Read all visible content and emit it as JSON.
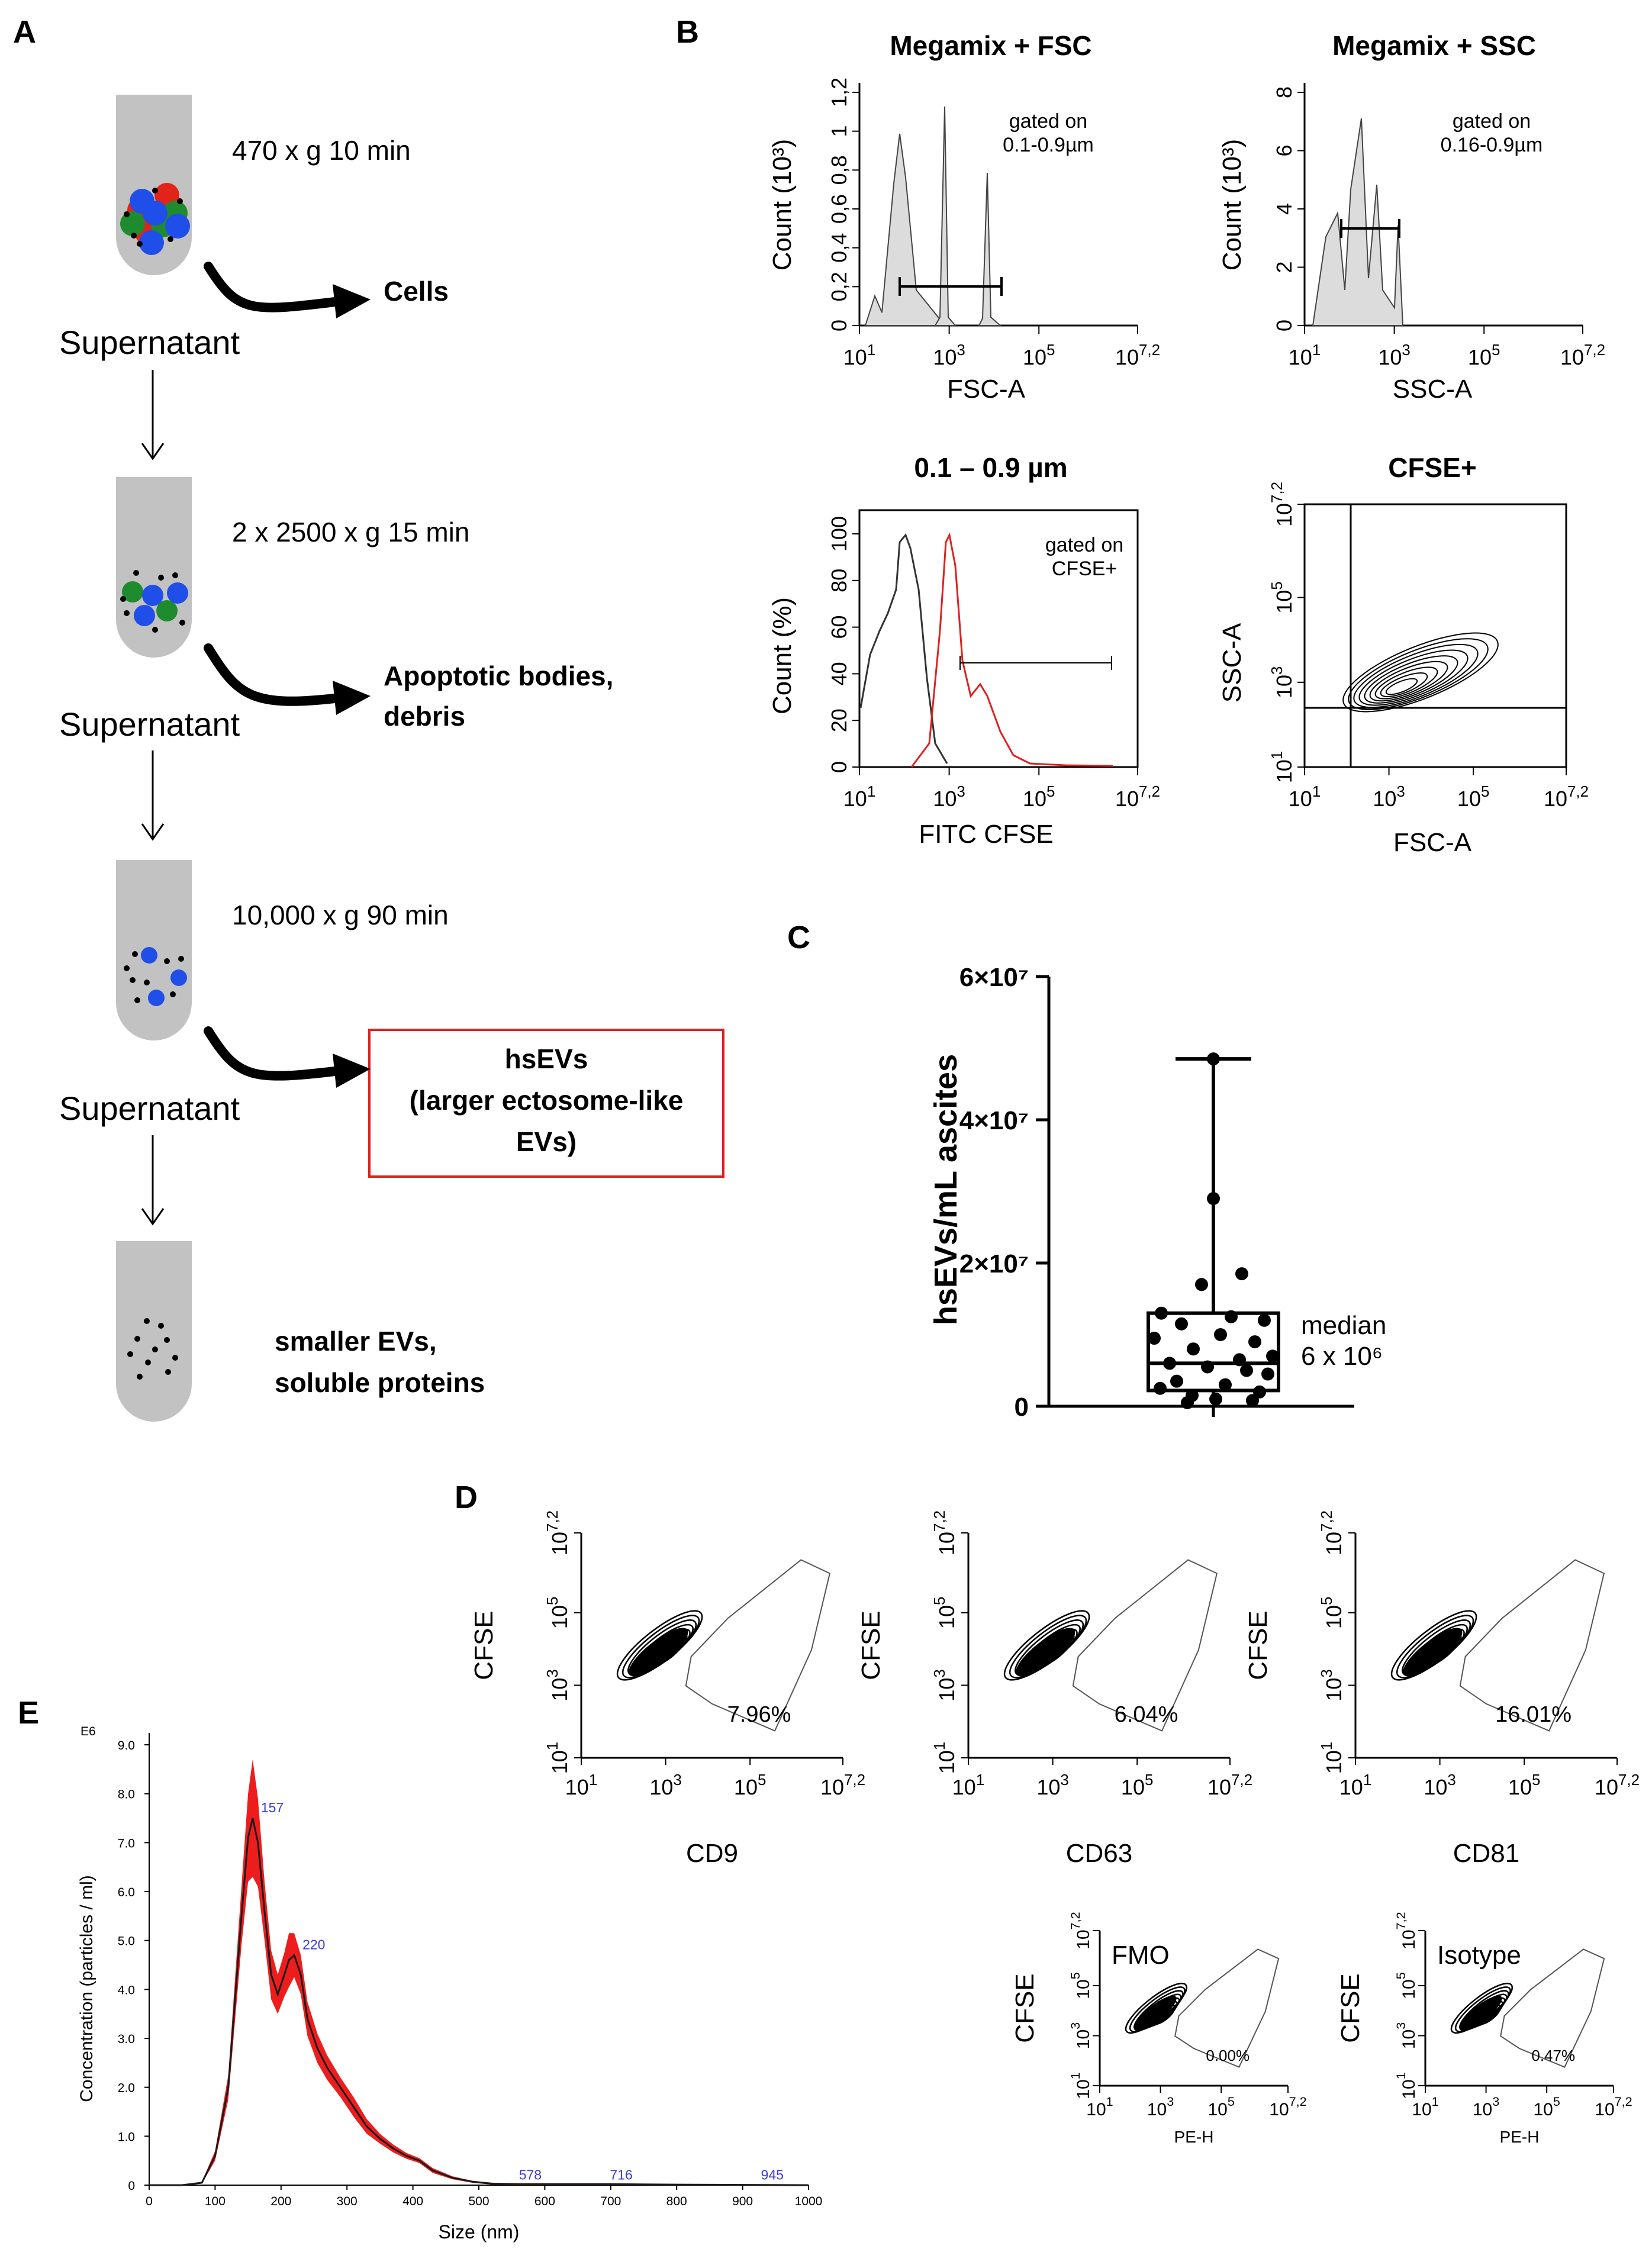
{
  "panels": {
    "a": "A",
    "b": "B",
    "c": "C",
    "d": "D",
    "e": "E"
  },
  "panel_a": {
    "steps": [
      "470 x g 10 min",
      "2 x 2500 x g 15 min",
      "10,000 x g 90 min"
    ],
    "outputs": [
      "Cells",
      "Apoptotic bodies, debris",
      "smaller EVs, soluble proteins"
    ],
    "output_lines": [
      [
        "Cells"
      ],
      [
        "Apoptotic bodies,",
        "debris"
      ],
      [
        "smaller EVs,",
        "soluble proteins"
      ]
    ],
    "supernatant": "Supernatant",
    "boxed_output": "hsEVs (larger ectosome-like EVs)",
    "boxed_lines": [
      "hsEVs",
      "(larger ectosome-like",
      "EVs)"
    ],
    "colors": {
      "tube": "#c2c2c2",
      "red": "#e2231a",
      "green": "#1e8c2e",
      "blue": "#1f4fe8",
      "box": "#e02020"
    }
  },
  "panel_b": {
    "plots": [
      {
        "title": "Megamix + FSC",
        "xlabel": "FSC-A",
        "ylabel": "Count (10³)",
        "gate_note": [
          "gated on",
          "0.1-0.9µm"
        ],
        "y_ticks": [
          "0",
          "0,2",
          "0,4",
          "0,6",
          "0,8",
          "1",
          "1,2"
        ]
      },
      {
        "title": "Megamix + SSC",
        "xlabel": "SSC-A",
        "ylabel": "Count (10³)",
        "gate_note": [
          "gated on",
          "0.16-0.9µm"
        ],
        "y_ticks": [
          "0",
          "2",
          "4",
          "6",
          "8"
        ]
      },
      {
        "title": "0.1 – 0.9 µm",
        "xlabel": "FITC CFSE",
        "ylabel": "Count (%)",
        "gate_note": [
          "gated on",
          "CFSE+"
        ],
        "y_ticks": [
          "0",
          "20",
          "40",
          "60",
          "80",
          "100"
        ]
      },
      {
        "title": "CFSE+",
        "xlabel": "FSC-A",
        "ylabel": "SSC-A"
      }
    ],
    "log_ticks": [
      "10",
      "10",
      "10",
      "10"
    ],
    "log_exps": [
      "1",
      "3",
      "5",
      "7,2"
    ],
    "colors": {
      "cfse": "#e02020",
      "fill": "#dcdcdc"
    }
  },
  "chart_data": [
    {
      "type": "scatter",
      "title": "",
      "ylabel": "hsEVs/mL ascites",
      "y_ticks": [
        "0",
        "2×10⁷",
        "4×10⁷",
        "6×10⁷"
      ],
      "ylim": [
        0,
        60000000
      ],
      "box": {
        "min": 500000,
        "q1": 2200000,
        "median": 6000000,
        "q3": 13000000,
        "max": 48500000
      },
      "points": [
        48500000,
        29000000,
        18500000,
        17000000,
        13000000,
        12500000,
        12000000,
        11500000,
        10000000,
        9500000,
        9000000,
        8000000,
        7000000,
        6500000,
        6000000,
        5500000,
        5000000,
        4500000,
        3500000,
        3000000,
        2500000,
        2000000,
        1500000,
        1000000,
        800000,
        500000
      ],
      "annotation": "median 6 x 10⁶",
      "annotation_lines": [
        "median",
        "6 x 10⁶"
      ]
    },
    {
      "type": "line",
      "title": "",
      "xlabel": "Size (nm)",
      "ylabel": "Concentration (particles / ml)",
      "y_multiplier": "E6",
      "x_ticks": [
        0,
        100,
        200,
        300,
        400,
        500,
        600,
        700,
        800,
        900,
        1000
      ],
      "y_ticks": [
        "0",
        "1.0",
        "2.0",
        "3.0",
        "4.0",
        "5.0",
        "6.0",
        "7.0",
        "8.0",
        "9.0"
      ],
      "xlim": [
        0,
        1000
      ],
      "ylim": [
        0,
        9
      ],
      "x": [
        50,
        80,
        100,
        120,
        140,
        150,
        157,
        165,
        175,
        185,
        195,
        205,
        212,
        220,
        230,
        240,
        255,
        270,
        290,
        310,
        330,
        350,
        370,
        390,
        410,
        430,
        460,
        490,
        520,
        560,
        600,
        700,
        800,
        1000
      ],
      "y": [
        0,
        0.05,
        0.6,
        2.0,
        5.5,
        7.1,
        7.5,
        7.0,
        5.6,
        4.3,
        3.9,
        4.3,
        4.6,
        4.7,
        4.3,
        3.4,
        2.8,
        2.4,
        2.0,
        1.6,
        1.2,
        0.95,
        0.75,
        0.6,
        0.5,
        0.3,
        0.15,
        0.07,
        0.03,
        0.02,
        0.02,
        0.02,
        0.01,
        0.0
      ],
      "spread": [
        0,
        0.02,
        0.1,
        0.25,
        0.6,
        0.9,
        1.2,
        0.9,
        0.6,
        0.5,
        0.4,
        0.45,
        0.55,
        0.45,
        0.4,
        0.35,
        0.3,
        0.25,
        0.2,
        0.2,
        0.15,
        0.1,
        0.08,
        0.06,
        0.05,
        0.05,
        0.03,
        0.02,
        0.02,
        0.02,
        0.02,
        0.02,
        0.01,
        0.0
      ],
      "peak_labels": [
        {
          "x": 157,
          "y": 7.5,
          "label": "157"
        },
        {
          "x": 220,
          "y": 4.7,
          "label": "220"
        },
        {
          "x": 578,
          "y": 0.02,
          "label": "578"
        },
        {
          "x": 716,
          "y": 0.02,
          "label": "716"
        },
        {
          "x": 945,
          "y": 0.02,
          "label": "945"
        }
      ],
      "colors": {
        "band": "#ee1d1d",
        "mean": "#1a1a1a",
        "peak": "#3a3ae0"
      }
    }
  ],
  "panel_d": {
    "plots": [
      {
        "xlabel": "CD9",
        "ylabel": "CFSE",
        "percent": "7.96%"
      },
      {
        "xlabel": "CD63",
        "ylabel": "CFSE",
        "percent": "6.04%"
      },
      {
        "xlabel": "CD81",
        "ylabel": "CFSE",
        "percent": "16.01%"
      },
      {
        "xlabel": "PE-H",
        "ylabel": "CFSE",
        "percent": "0.00%",
        "tag": "FMO"
      },
      {
        "xlabel": "PE-H",
        "ylabel": "CFSE",
        "percent": "0.47%",
        "tag": "Isotype"
      }
    ]
  }
}
